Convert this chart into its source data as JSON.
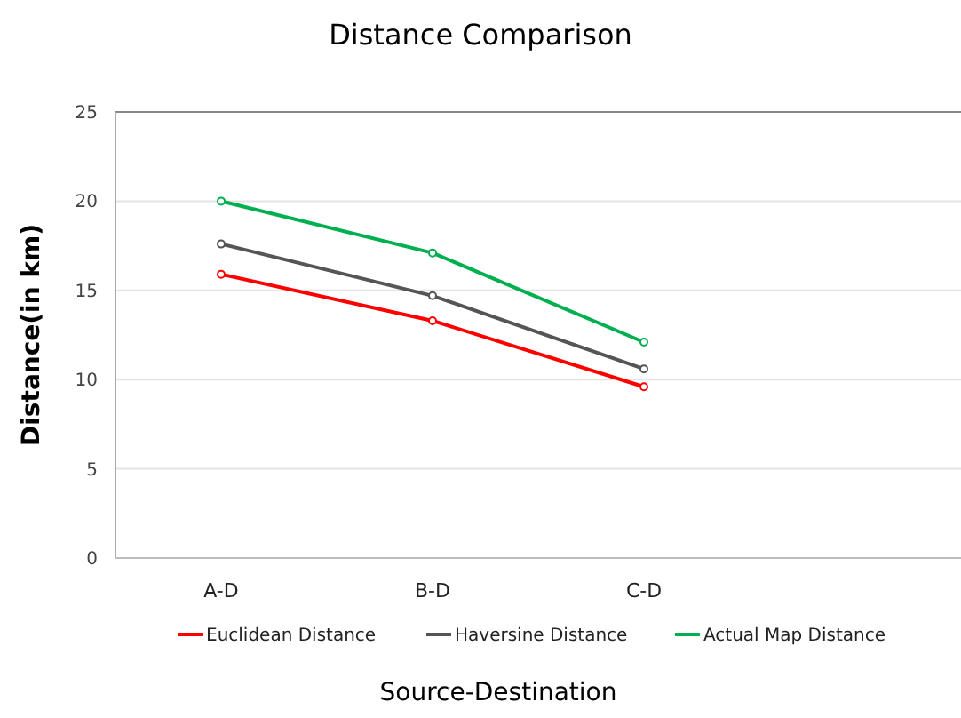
{
  "chart_data": {
    "type": "line",
    "title": "Distance Comparison",
    "xlabel": "Source-Destination",
    "ylabel": "Distance(in km)",
    "categories": [
      "A-D",
      "B-D",
      "C-D",
      null
    ],
    "series": [
      {
        "name": "Euclidean Distance",
        "color": "#ff0000",
        "values": [
          15.9,
          13.3,
          9.6,
          null
        ]
      },
      {
        "name": "Haversine Distance",
        "color": "#555555",
        "values": [
          17.6,
          14.7,
          10.6,
          null
        ]
      },
      {
        "name": "Actual Map Distance",
        "color": "#00b050",
        "values": [
          20.0,
          17.1,
          12.1,
          null
        ]
      }
    ],
    "ylim": [
      0,
      25
    ],
    "yticks": [
      0,
      5,
      10,
      15,
      20,
      25
    ],
    "grid": "y",
    "legend": "bottom",
    "marker": "circle",
    "line_style": "solid"
  }
}
